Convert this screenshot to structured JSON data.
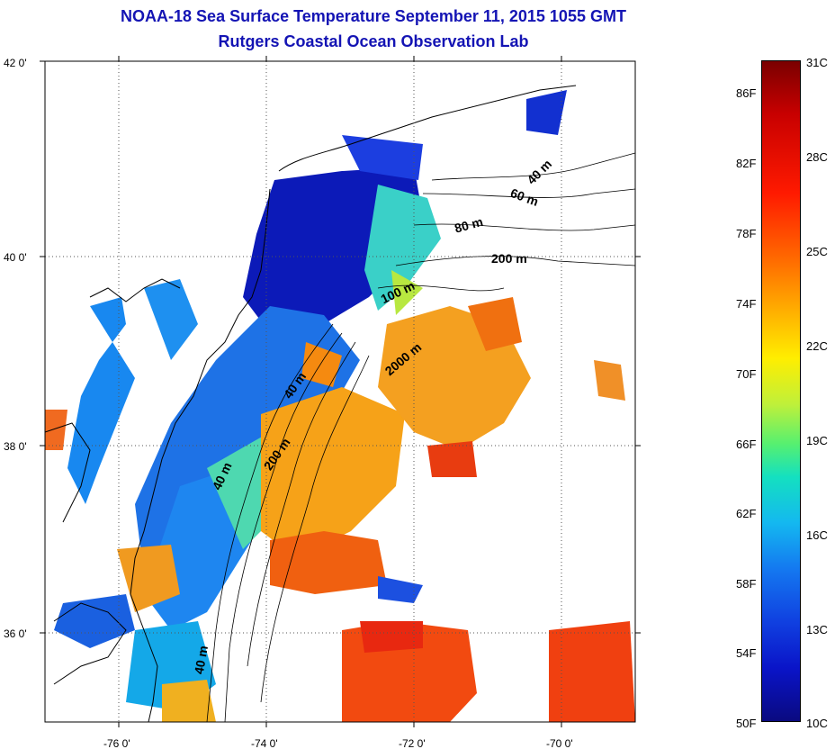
{
  "title": "NOAA-18 Sea Surface Temperature September 11, 2015 1055 GMT",
  "subtitle": "Rutgers Coastal Ocean Observation Lab",
  "axes": {
    "x_ticks": [
      "-76 0'",
      "-74 0'",
      "-72 0'",
      "-70 0'"
    ],
    "y_ticks": [
      "42 0'",
      "40 0'",
      "38 0'",
      "36 0'"
    ],
    "lon_range": [
      -77,
      -69
    ],
    "lat_range": [
      35,
      42
    ],
    "grid": "dotted"
  },
  "contour_labels": [
    "40 m",
    "60 m",
    "80 m",
    "200 m",
    "100 m",
    "2000 m",
    "40 m",
    "200 m",
    "40 m",
    "40 m"
  ],
  "colorbar": {
    "fahrenheit": [
      "86F",
      "82F",
      "78F",
      "74F",
      "70F",
      "66F",
      "62F",
      "58F",
      "54F",
      "50F"
    ],
    "celsius": [
      "31C",
      "28C",
      "25C",
      "22C",
      "19C",
      "16C",
      "13C",
      "10C"
    ],
    "colors": [
      "#7a0000",
      "#ff1a00",
      "#ffb000",
      "#ffee00",
      "#56f070",
      "#14e0c0",
      "#1478f0",
      "#0a14c8",
      "#0a0a80"
    ]
  }
}
